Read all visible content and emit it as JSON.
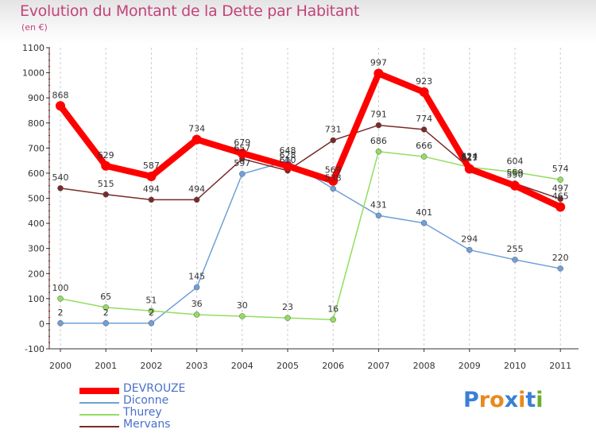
{
  "title": "Evolution du Montant de la Dette par Habitant",
  "unit_label": "(en €)",
  "logo_text": "Proxiti",
  "chart_data": {
    "type": "line",
    "title": "Evolution du Montant de la Dette par Habitant",
    "ylabel": "(en €)",
    "xlabel": "",
    "categories": [
      "2000",
      "2001",
      "2002",
      "2003",
      "2004",
      "2005",
      "2006",
      "2007",
      "2008",
      "2009",
      "2010",
      "2011"
    ],
    "ylim": [
      -100,
      1100
    ],
    "yticks": [
      -100,
      0,
      100,
      200,
      300,
      400,
      500,
      600,
      700,
      800,
      900,
      1000,
      1100
    ],
    "grid": "vertical",
    "legend_position": "bottom-left",
    "series": [
      {
        "name": "DEVROUZE",
        "color": "#ff0000",
        "values": [
          868,
          629,
          587,
          734,
          679,
          628,
          569,
          997,
          923,
          617,
          550,
          465
        ]
      },
      {
        "name": "Diconne",
        "color": "#6fa0d8",
        "values": [
          2,
          2,
          2,
          145,
          597,
          648,
          538,
          431,
          401,
          294,
          255,
          220
        ]
      },
      {
        "name": "Thurey",
        "color": "#92dd60",
        "values": [
          100,
          65,
          51,
          36,
          30,
          23,
          16,
          686,
          666,
          624,
          604,
          574
        ]
      },
      {
        "name": "Mervans",
        "color": "#7a2a2a",
        "values": [
          540,
          515,
          494,
          494,
          657,
          610,
          731,
          791,
          774,
          621,
          559,
          497
        ]
      }
    ]
  }
}
